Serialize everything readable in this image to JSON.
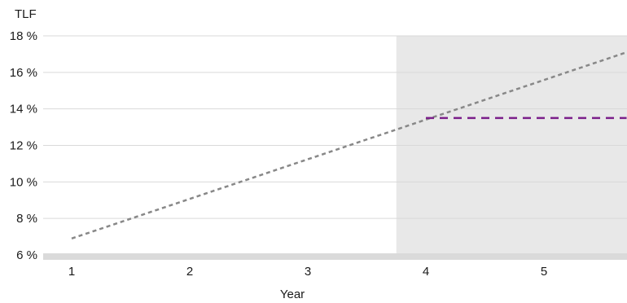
{
  "chart_data": {
    "type": "line",
    "ylabel": "TLF",
    "xlabel": "Year",
    "ylim": [
      6,
      18
    ],
    "xlim": [
      0.75,
      5.7
    ],
    "yticks": [
      6,
      8,
      10,
      12,
      14,
      16,
      18
    ],
    "ytick_labels": [
      "6 %",
      "8 %",
      "10 %",
      "12 %",
      "14 %",
      "16 %",
      "18 %"
    ],
    "xticks": [
      1,
      2,
      3,
      4,
      5
    ],
    "xtick_labels": [
      "1",
      "2",
      "3",
      "4",
      "5"
    ],
    "grid": "horizontal",
    "shaded_region": {
      "x_from": 3.75,
      "x_to": 5.7,
      "color": "#e8e8e8"
    },
    "series": [
      {
        "style": "dotted",
        "color": "#888888",
        "x": [
          1,
          5.7
        ],
        "y": [
          6.9,
          17.1
        ]
      },
      {
        "style": "dashed",
        "color": "#7b1f8a",
        "x": [
          4.0,
          5.7
        ],
        "y": [
          13.5,
          13.5
        ]
      }
    ]
  }
}
